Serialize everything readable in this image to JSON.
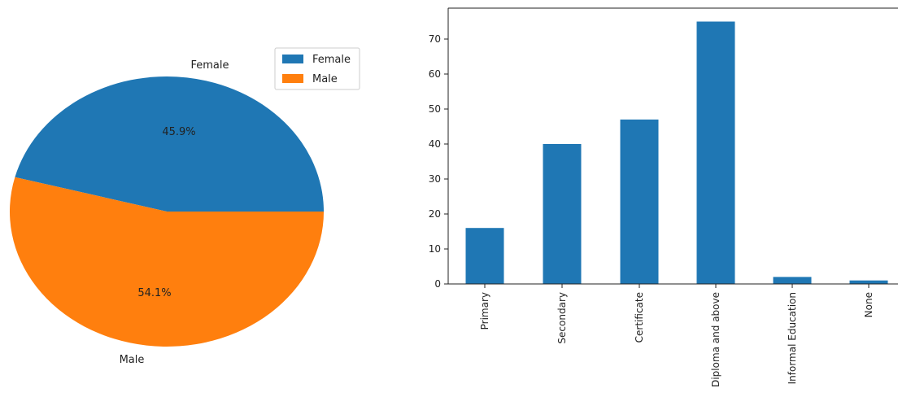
{
  "chart_data": [
    {
      "type": "pie",
      "categories": [
        "Female",
        "Male"
      ],
      "values": [
        45.9,
        54.1
      ],
      "value_labels": [
        "45.9%",
        "54.1%"
      ],
      "colors": [
        "#1f77b4",
        "#ff7f0e"
      ],
      "legend": {
        "placement": "top-right",
        "entries": [
          "Female",
          "Male"
        ]
      }
    },
    {
      "type": "bar",
      "categories": [
        "Primary",
        "Secondary",
        "Certificate",
        "Diploma and above",
        "Informal Education",
        "None"
      ],
      "values": [
        16,
        40,
        47,
        75,
        2,
        1
      ],
      "color": "#1f77b4",
      "yticks": [
        "0",
        "10",
        "20",
        "30",
        "40",
        "50",
        "60",
        "70"
      ],
      "ylim": [
        0,
        78
      ],
      "grid": false
    }
  ]
}
